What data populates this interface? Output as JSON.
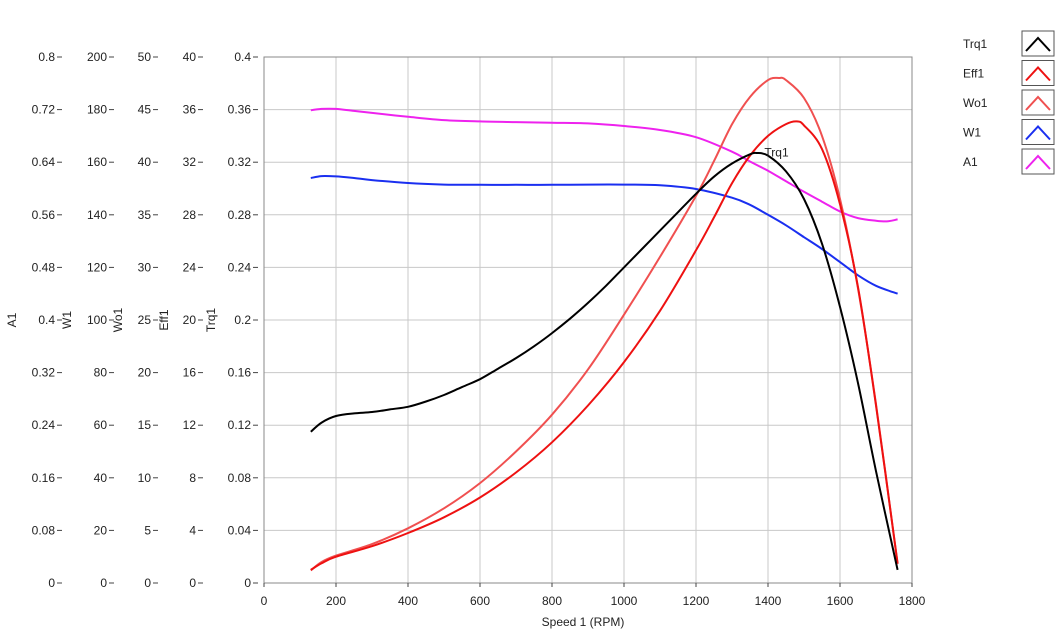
{
  "chart_data": {
    "type": "line",
    "xlabel": "Speed 1 (RPM)",
    "xlim": [
      0,
      1800
    ],
    "x_ticks": [
      "0",
      "200",
      "400",
      "600",
      "800",
      "1000",
      "1200",
      "1400",
      "1600",
      "1800"
    ],
    "grid": true,
    "legend_position": "top-right",
    "y_axes": [
      {
        "label": "A1",
        "lim": [
          0,
          0.8
        ],
        "ticks": [
          "0",
          "0.08",
          "0.16",
          "0.24",
          "0.32",
          "0.4",
          "0.48",
          "0.56",
          "0.64",
          "0.72",
          "0.8"
        ]
      },
      {
        "label": "W1",
        "lim": [
          0,
          200
        ],
        "ticks": [
          "0",
          "20",
          "40",
          "60",
          "80",
          "100",
          "120",
          "140",
          "160",
          "180",
          "200"
        ]
      },
      {
        "label": "Wo1",
        "lim": [
          0,
          50
        ],
        "ticks": [
          "0",
          "5",
          "10",
          "15",
          "20",
          "25",
          "30",
          "35",
          "40",
          "45",
          "50"
        ]
      },
      {
        "label": "Eff1",
        "lim": [
          0,
          40
        ],
        "ticks": [
          "0",
          "4",
          "8",
          "12",
          "16",
          "20",
          "24",
          "28",
          "32",
          "36",
          "40"
        ]
      },
      {
        "label": "Trq1",
        "lim": [
          0,
          0.4
        ],
        "ticks": [
          "0",
          "0.04",
          "0.08",
          "0.12",
          "0.16",
          "0.2",
          "0.24",
          "0.28",
          "0.32",
          "0.36",
          "0.4"
        ]
      }
    ],
    "annotation": {
      "text": "Trq1",
      "x": 1390,
      "y": 0.323
    },
    "series": [
      {
        "name": "Trq1",
        "color": "#000000",
        "y_axis": "Trq1",
        "x": [
          130,
          160,
          200,
          250,
          300,
          350,
          400,
          450,
          500,
          550,
          600,
          650,
          700,
          750,
          800,
          850,
          900,
          950,
          1000,
          1050,
          1100,
          1150,
          1200,
          1250,
          1300,
          1350,
          1370,
          1400,
          1450,
          1500,
          1550,
          1600,
          1650,
          1700,
          1760
        ],
        "y": [
          0.115,
          0.122,
          0.127,
          0.129,
          0.13,
          0.132,
          0.134,
          0.138,
          0.143,
          0.149,
          0.155,
          0.163,
          0.171,
          0.18,
          0.19,
          0.201,
          0.213,
          0.226,
          0.24,
          0.254,
          0.268,
          0.282,
          0.296,
          0.309,
          0.319,
          0.326,
          0.327,
          0.325,
          0.313,
          0.292,
          0.258,
          0.21,
          0.152,
          0.085,
          0.01
        ]
      },
      {
        "name": "Eff1",
        "color": "#ee1111",
        "y_axis": "Eff1",
        "x": [
          130,
          160,
          200,
          300,
          400,
          500,
          600,
          700,
          800,
          900,
          1000,
          1100,
          1200,
          1250,
          1300,
          1350,
          1400,
          1450,
          1480,
          1500,
          1550,
          1600,
          1650,
          1700,
          1760
        ],
        "y": [
          1.0,
          1.5,
          2.0,
          2.8,
          3.8,
          5.0,
          6.5,
          8.4,
          10.7,
          13.5,
          16.8,
          20.7,
          25.3,
          27.8,
          30.4,
          32.5,
          34.0,
          34.9,
          35.1,
          34.8,
          33.0,
          28.8,
          22.5,
          13.5,
          1.5
        ]
      },
      {
        "name": "Wo1",
        "color": "#f05050",
        "y_axis": "Wo1",
        "x": [
          130,
          160,
          200,
          300,
          400,
          500,
          600,
          700,
          800,
          900,
          1000,
          1100,
          1200,
          1250,
          1300,
          1350,
          1400,
          1430,
          1450,
          1500,
          1550,
          1600,
          1650,
          1700,
          1760
        ],
        "y": [
          1.2,
          2.0,
          2.6,
          3.7,
          5.2,
          7.1,
          9.5,
          12.5,
          16.0,
          20.3,
          25.5,
          31.0,
          36.8,
          40.1,
          43.6,
          46.2,
          47.8,
          48.0,
          47.8,
          46.1,
          42.5,
          36.5,
          28.0,
          17.0,
          1.8
        ]
      },
      {
        "name": "W1",
        "color": "#1a2ff0",
        "y_axis": "W1",
        "x": [
          130,
          160,
          200,
          250,
          300,
          400,
          500,
          600,
          700,
          800,
          900,
          1000,
          1100,
          1200,
          1300,
          1350,
          1400,
          1450,
          1500,
          1550,
          1600,
          1650,
          1700,
          1760
        ],
        "y": [
          154.0,
          154.7,
          154.6,
          154.0,
          153.2,
          152.1,
          151.5,
          151.4,
          151.4,
          151.4,
          151.5,
          151.5,
          151.2,
          149.8,
          146.5,
          143.8,
          140.0,
          136.0,
          131.5,
          127.0,
          122.0,
          117.0,
          113.0,
          110.0
        ]
      },
      {
        "name": "A1",
        "color": "#ee22ee",
        "y_axis": "A1",
        "x": [
          130,
          160,
          200,
          250,
          300,
          400,
          500,
          600,
          700,
          800,
          900,
          1000,
          1100,
          1200,
          1300,
          1350,
          1400,
          1450,
          1500,
          1550,
          1600,
          1650,
          1700,
          1730,
          1760
        ],
        "y": [
          0.719,
          0.721,
          0.721,
          0.718,
          0.715,
          0.709,
          0.704,
          0.702,
          0.701,
          0.7,
          0.699,
          0.695,
          0.689,
          0.678,
          0.656,
          0.641,
          0.627,
          0.611,
          0.595,
          0.58,
          0.565,
          0.555,
          0.551,
          0.55,
          0.553
        ]
      }
    ]
  }
}
